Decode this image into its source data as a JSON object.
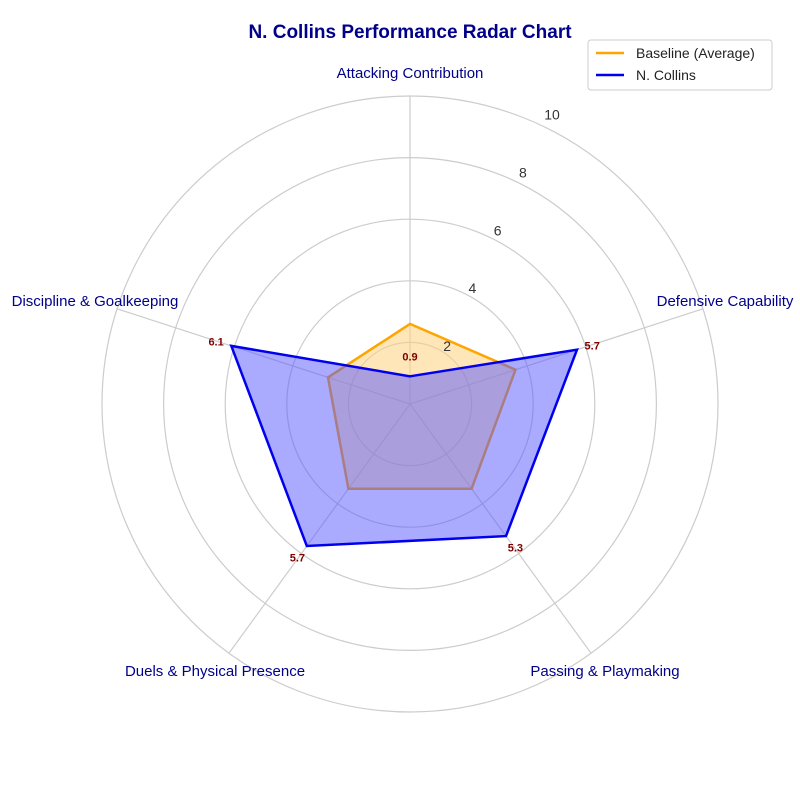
{
  "chart_data": {
    "type": "radar",
    "title": "N. Collins Performance Radar Chart",
    "categories": [
      "Attacking Contribution",
      "Defensive Capability",
      "Passing & Playmaking",
      "Duels & Physical Presence",
      "Discipline & Goalkeeping"
    ],
    "rlim": [
      0,
      10
    ],
    "rticks": [
      2,
      4,
      6,
      8,
      10
    ],
    "grid": true,
    "legend_position": "top-right",
    "series": [
      {
        "name": "Baseline (Average)",
        "values": [
          2.6,
          3.6,
          3.4,
          3.4,
          2.8
        ],
        "color": "#ffa500",
        "fill_color": "#ffd27f"
      },
      {
        "name": "N. Collins",
        "values": [
          0.9,
          5.7,
          5.3,
          5.7,
          6.1
        ],
        "color": "#0000ee",
        "fill_color": "#5555ff"
      }
    ],
    "value_labels": [
      "0.9",
      "5.7",
      "5.3",
      "5.7",
      "6.1"
    ]
  }
}
